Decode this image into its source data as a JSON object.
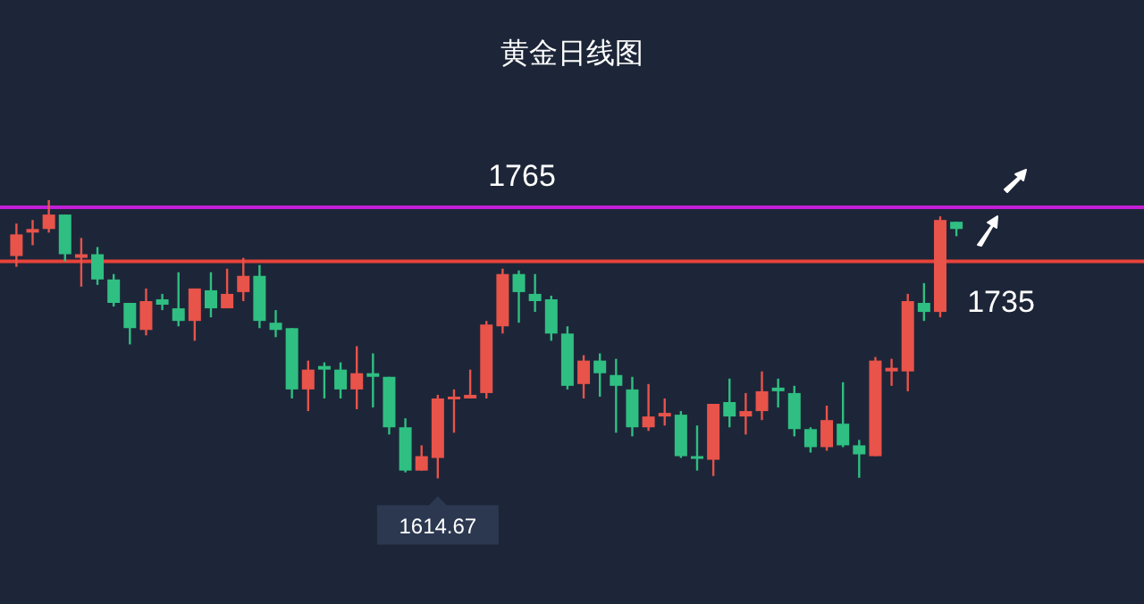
{
  "chart_data": {
    "type": "candlestick",
    "title": "黄金日线图",
    "categories": [
      null,
      null,
      null,
      null,
      null,
      null,
      null,
      null,
      null,
      null,
      null,
      null,
      null,
      null,
      null,
      null,
      null,
      null,
      null,
      null,
      null,
      null,
      null,
      null,
      null,
      null,
      null,
      null,
      null,
      null,
      null,
      null,
      null,
      null,
      null,
      null,
      null,
      null,
      null,
      null,
      null,
      null,
      null,
      null,
      null,
      null,
      null,
      null,
      null,
      null,
      null,
      null,
      null,
      null,
      null,
      null,
      null,
      null,
      null
    ],
    "ohlc": [
      [
        1738,
        1756,
        1732,
        1750
      ],
      [
        1751,
        1758,
        1744,
        1753
      ],
      [
        1753,
        1769,
        1751,
        1761
      ],
      [
        1761,
        1761,
        1735,
        1739
      ],
      [
        1737,
        1748,
        1721,
        1739
      ],
      [
        1739,
        1743,
        1722,
        1725
      ],
      [
        1725,
        1728,
        1710,
        1712
      ],
      [
        1712,
        1712,
        1689,
        1698
      ],
      [
        1697,
        1720,
        1694,
        1713
      ],
      [
        1714,
        1717,
        1708,
        1711
      ],
      [
        1709,
        1729,
        1699,
        1702
      ],
      [
        1702,
        1720,
        1691,
        1720
      ],
      [
        1719,
        1729,
        1704,
        1709
      ],
      [
        1709,
        1731,
        1709,
        1717
      ],
      [
        1718,
        1737,
        1713,
        1727
      ],
      [
        1727,
        1733,
        1698,
        1702
      ],
      [
        1701,
        1708,
        1693,
        1697
      ],
      [
        1698,
        1698,
        1659,
        1664
      ],
      [
        1664,
        1680,
        1652,
        1675
      ],
      [
        1677,
        1679,
        1659,
        1675
      ],
      [
        1675,
        1679,
        1659,
        1664
      ],
      [
        1664,
        1688,
        1653,
        1673
      ],
      [
        1673,
        1684,
        1654,
        1671
      ],
      [
        1671,
        1671,
        1639,
        1643
      ],
      [
        1643,
        1648,
        1618,
        1619
      ],
      [
        1619,
        1633,
        1619,
        1627
      ],
      [
        1626,
        1661,
        1614.67,
        1659
      ],
      [
        1659,
        1664,
        1640,
        1660
      ],
      [
        1659,
        1675,
        1659,
        1661
      ],
      [
        1662,
        1702,
        1659,
        1700
      ],
      [
        1699,
        1731,
        1695,
        1728
      ],
      [
        1728,
        1730,
        1701,
        1718
      ],
      [
        1717,
        1728,
        1707,
        1713
      ],
      [
        1714,
        1716,
        1691,
        1695
      ],
      [
        1695,
        1699,
        1664,
        1666
      ],
      [
        1667,
        1683,
        1659,
        1680
      ],
      [
        1680,
        1684,
        1660,
        1673
      ],
      [
        1672,
        1681,
        1640,
        1666
      ],
      [
        1664,
        1671,
        1638,
        1643
      ],
      [
        1643,
        1667,
        1641,
        1649
      ],
      [
        1649,
        1659,
        1644,
        1651
      ],
      [
        1650,
        1652,
        1626,
        1627
      ],
      [
        1627,
        1644,
        1619,
        1626
      ],
      [
        1625,
        1656,
        1616,
        1656
      ],
      [
        1657,
        1670,
        1643,
        1649
      ],
      [
        1649,
        1662,
        1639,
        1652
      ],
      [
        1652,
        1674,
        1647,
        1663
      ],
      [
        1665,
        1670,
        1654,
        1663
      ],
      [
        1662,
        1666,
        1638,
        1642
      ],
      [
        1642,
        1643,
        1629,
        1632
      ],
      [
        1632,
        1655,
        1630,
        1647
      ],
      [
        1645,
        1668,
        1632,
        1633
      ],
      [
        1633,
        1636,
        1615,
        1628
      ],
      [
        1627,
        1682,
        1627,
        1680
      ],
      [
        1674,
        1681,
        1666,
        1676
      ],
      [
        1674,
        1717,
        1663,
        1713
      ],
      [
        1712,
        1723,
        1702,
        1707
      ],
      [
        1707,
        1760,
        1704,
        1758
      ],
      [
        1757,
        1757,
        1749,
        1753
      ]
    ],
    "colors": [
      "#e8534a",
      "#e8534a",
      "#e8534a",
      "#2fbf82",
      "#e8534a",
      "#2fbf82",
      "#2fbf82",
      "#2fbf82",
      "#e8534a",
      "#2fbf82",
      "#2fbf82",
      "#e8534a",
      "#2fbf82",
      "#e8534a",
      "#e8534a",
      "#2fbf82",
      "#2fbf82",
      "#2fbf82",
      "#e8534a",
      "#2fbf82",
      "#2fbf82",
      "#e8534a",
      "#2fbf82",
      "#2fbf82",
      "#2fbf82",
      "#e8534a",
      "#e8534a",
      "#e8534a",
      "#e8534a",
      "#e8534a",
      "#e8534a",
      "#2fbf82",
      "#2fbf82",
      "#2fbf82",
      "#2fbf82",
      "#e8534a",
      "#2fbf82",
      "#2fbf82",
      "#2fbf82",
      "#e8534a",
      "#e8534a",
      "#2fbf82",
      "#2fbf82",
      "#e8534a",
      "#2fbf82",
      "#e8534a",
      "#e8534a",
      "#2fbf82",
      "#2fbf82",
      "#2fbf82",
      "#e8534a",
      "#2fbf82",
      "#2fbf82",
      "#e8534a",
      "#e8534a",
      "#e8534a",
      "#2fbf82",
      "#e8534a",
      "#2fbf82"
    ],
    "ylim": [
      1545,
      1880
    ],
    "ref_lines": [
      {
        "axis": "y",
        "value": 1765,
        "label": "1765",
        "color": "#c21fd6"
      },
      {
        "axis": "y",
        "value": 1735,
        "label": "1735",
        "color": "#e8423a"
      }
    ],
    "annotations": [
      {
        "text": "1614.67",
        "y": 1614.67
      }
    ]
  }
}
